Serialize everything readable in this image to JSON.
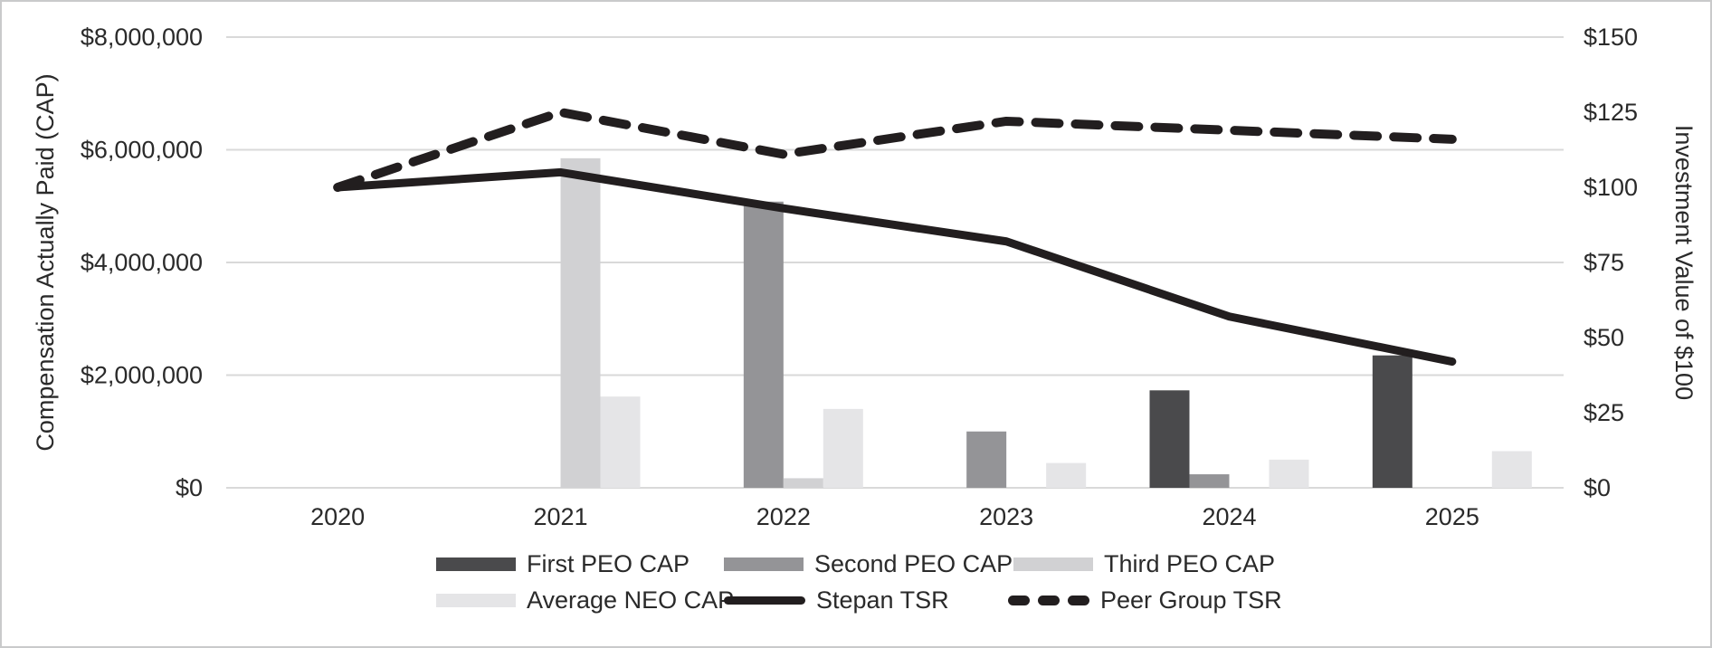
{
  "chart_data": {
    "type": "combo-bar-line",
    "categories": [
      "2020",
      "2021",
      "2022",
      "2023",
      "2024",
      "2025"
    ],
    "bar_series": [
      {
        "name": "First PEO CAP",
        "color": "#4a4a4c",
        "values": [
          null,
          null,
          null,
          null,
          1730000,
          2350000
        ]
      },
      {
        "name": "Second PEO CAP",
        "color": "#949497",
        "values": [
          null,
          null,
          5080000,
          1000000,
          240000,
          null
        ]
      },
      {
        "name": "Third PEO CAP",
        "color": "#d1d1d3",
        "values": [
          null,
          5850000,
          170000,
          null,
          null,
          null
        ]
      },
      {
        "name": "Average NEO CAP",
        "color": "#e5e5e7",
        "values": [
          null,
          1620000,
          1400000,
          440000,
          500000,
          650000
        ]
      }
    ],
    "line_series": [
      {
        "name": "Stepan TSR",
        "style": "solid",
        "color": "#221e1f",
        "values": [
          100,
          105,
          93,
          82,
          57,
          42
        ]
      },
      {
        "name": "Peer Group TSR",
        "style": "dashed",
        "color": "#221e1f",
        "values": [
          100,
          125,
          111,
          122,
          119,
          116
        ]
      }
    ],
    "left_axis": {
      "title": "Compensation Actually Paid (CAP)",
      "min": 0,
      "max": 8000000,
      "tick_values": [
        0,
        2000000,
        4000000,
        6000000,
        8000000
      ],
      "tick_labels": [
        "$0",
        "$2,000,000",
        "$4,000,000",
        "$6,000,000",
        "$8,000,000"
      ]
    },
    "right_axis": {
      "title": "Investment Value of $100",
      "min": 0,
      "max": 150,
      "tick_values": [
        0,
        25,
        50,
        75,
        100,
        125,
        150
      ],
      "tick_labels": [
        "$0",
        "$25",
        "$50",
        "$75",
        "$100",
        "$125",
        "$150"
      ]
    },
    "grid": true,
    "legend_position": "bottom",
    "colors": {
      "gridline": "#d9d9d9",
      "text": "#2a2a2a"
    }
  }
}
